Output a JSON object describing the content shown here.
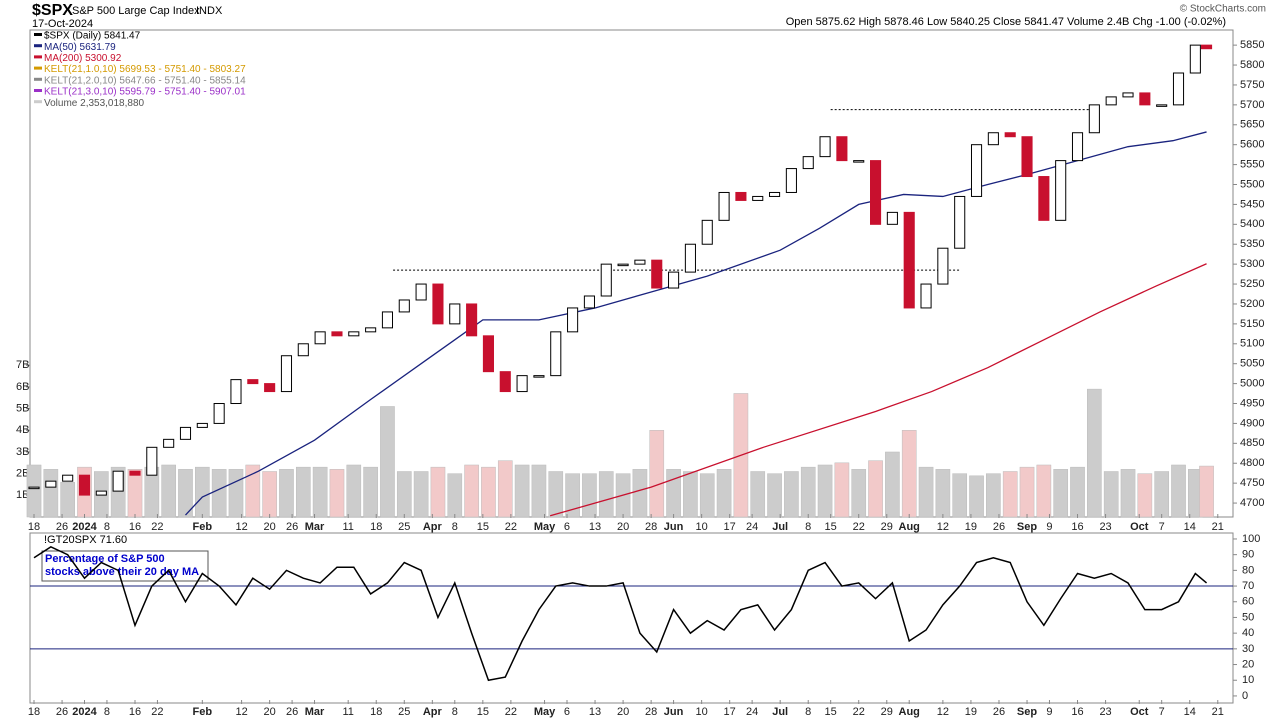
{
  "header": {
    "title": "$SPX",
    "subtitle": "S&P 500 Large Cap Index",
    "exchange": "INDX",
    "date": "17-Oct-2024",
    "quote": "Open 5875.62  High 5878.46  Low 5840.25  Close 5841.47  Volume 2.4B  Chg -1.00 (-0.02%)",
    "credit": "© StockCharts.com"
  },
  "chart_data": [
    {
      "type": "candlestick",
      "x": [
        0,
        3,
        6,
        9,
        12,
        15,
        18,
        21,
        24,
        27,
        30,
        33,
        36,
        39,
        42,
        45,
        48,
        51,
        54,
        57,
        60,
        63,
        66,
        69,
        72,
        75,
        78,
        81,
        84,
        87,
        90,
        93,
        96,
        99,
        102,
        105,
        108,
        111,
        114,
        117,
        120,
        123,
        126,
        129,
        132,
        135,
        138,
        141,
        144,
        147,
        150,
        153,
        156,
        159,
        162,
        165,
        168,
        171,
        174,
        177,
        180,
        183,
        186,
        189,
        192,
        195,
        198,
        201,
        204,
        207,
        209
      ],
      "xlim": [
        -1,
        213
      ],
      "xticks": [
        {
          "value": 0,
          "label": "18"
        },
        {
          "value": 5,
          "label": "26"
        },
        {
          "value": 9,
          "label": "2024"
        },
        {
          "value": 13,
          "label": "8"
        },
        {
          "value": 18,
          "label": "16"
        },
        {
          "value": 22,
          "label": "22"
        },
        {
          "value": 30,
          "label": "Feb"
        },
        {
          "value": 37,
          "label": "12"
        },
        {
          "value": 42,
          "label": "20"
        },
        {
          "value": 46,
          "label": "26"
        },
        {
          "value": 50,
          "label": "Mar"
        },
        {
          "value": 56,
          "label": "11"
        },
        {
          "value": 61,
          "label": "18"
        },
        {
          "value": 66,
          "label": "25"
        },
        {
          "value": 71,
          "label": "Apr"
        },
        {
          "value": 75,
          "label": "8"
        },
        {
          "value": 80,
          "label": "15"
        },
        {
          "value": 85,
          "label": "22"
        },
        {
          "value": 91,
          "label": "May"
        },
        {
          "value": 95,
          "label": "6"
        },
        {
          "value": 100,
          "label": "13"
        },
        {
          "value": 105,
          "label": "20"
        },
        {
          "value": 110,
          "label": "28"
        },
        {
          "value": 114,
          "label": "Jun"
        },
        {
          "value": 119,
          "label": "10"
        },
        {
          "value": 124,
          "label": "17"
        },
        {
          "value": 128,
          "label": "24"
        },
        {
          "value": 133,
          "label": "Jul"
        },
        {
          "value": 138,
          "label": "8"
        },
        {
          "value": 142,
          "label": "15"
        },
        {
          "value": 147,
          "label": "22"
        },
        {
          "value": 152,
          "label": "29"
        },
        {
          "value": 156,
          "label": "Aug"
        },
        {
          "value": 162,
          "label": "12"
        },
        {
          "value": 167,
          "label": "19"
        },
        {
          "value": 172,
          "label": "26"
        },
        {
          "value": 177,
          "label": "Sep"
        },
        {
          "value": 181,
          "label": "9"
        },
        {
          "value": 186,
          "label": "16"
        },
        {
          "value": 191,
          "label": "23"
        },
        {
          "value": 197,
          "label": "Oct"
        },
        {
          "value": 201,
          "label": "7"
        },
        {
          "value": 206,
          "label": "14"
        },
        {
          "value": 211,
          "label": "21"
        }
      ],
      "ylim": [
        4665,
        5888
      ],
      "yticks": [
        4700,
        4750,
        4800,
        4850,
        4900,
        4950,
        5000,
        5050,
        5100,
        5150,
        5200,
        5250,
        5300,
        5350,
        5400,
        5450,
        5500,
        5550,
        5600,
        5650,
        5700,
        5750,
        5800,
        5850
      ],
      "y2lim": [
        0,
        22.47
      ],
      "y2ticks": [
        {
          "value": 1,
          "label": "1B"
        },
        {
          "value": 2,
          "label": "2B"
        },
        {
          "value": 3,
          "label": "3B"
        },
        {
          "value": 4,
          "label": "4B"
        },
        {
          "value": 5,
          "label": "5B"
        },
        {
          "value": 6,
          "label": "6B"
        },
        {
          "value": 7,
          "label": "7B"
        }
      ],
      "hlines": [
        {
          "y": 5688,
          "x": [
            142,
            188
          ]
        },
        {
          "y": 5285,
          "x": [
            64,
            165
          ]
        }
      ],
      "series": [
        {
          "name": "$SPX (Daily) 5841.47",
          "color": "#000000",
          "down_color": "#c8102e",
          "values": [
            4740,
            4755,
            4770,
            4720,
            4730,
            4780,
            4770,
            4840,
            4860,
            4890,
            4900,
            4950,
            5010,
            5000,
            4980,
            5070,
            5100,
            5130,
            5120,
            5130,
            5140,
            5180,
            5210,
            5250,
            5150,
            5200,
            5120,
            5030,
            4980,
            5020,
            5020,
            5130,
            5190,
            5220,
            5300,
            5300,
            5310,
            5240,
            5280,
            5350,
            5410,
            5480,
            5460,
            5470,
            5480,
            5540,
            5570,
            5620,
            5560,
            5560,
            5400,
            5430,
            5190,
            5250,
            5340,
            5470,
            5600,
            5630,
            5620,
            5520,
            5410,
            5560,
            5630,
            5700,
            5720,
            5730,
            5700,
            5700,
            5780,
            5850,
            5841
          ]
        },
        {
          "name": "MA(50) 5631.79",
          "color": "#1a237e",
          "x": [
            27,
            30,
            40,
            50,
            60,
            70,
            75,
            80,
            90,
            100,
            110,
            120,
            133,
            140,
            147,
            155,
            162,
            170,
            177,
            186,
            195,
            203,
            209
          ],
          "values": [
            4670,
            4715,
            4780,
            4858,
            4960,
            5060,
            5110,
            5160,
            5160,
            5190,
            5230,
            5270,
            5335,
            5390,
            5450,
            5475,
            5470,
            5500,
            5525,
            5560,
            5595,
            5610,
            5632
          ]
        },
        {
          "name": "MA(200) 5300.92",
          "color": "#c8102e",
          "x": [
            92,
            110,
            130,
            150,
            160,
            170,
            180,
            190,
            200,
            209
          ],
          "values": [
            4668,
            4740,
            4840,
            4930,
            4980,
            5040,
            5110,
            5180,
            5245,
            5301
          ]
        },
        {
          "name": "KELT(21,1.0,10) 5699.53 - 5751.40 - 5803.27",
          "color": "#d49a00"
        },
        {
          "name": "KELT(21,2.0,10) 5647.66 - 5751.40 - 5855.14",
          "color": "#888888"
        },
        {
          "name": "KELT(21,3.0,10) 5595.79 - 5751.40 - 5907.01",
          "color": "#9b30c8"
        },
        {
          "name": "Volume 2,353,018,880",
          "color": "#cccccc",
          "down_color": "#f2c9c9",
          "axis": "y2",
          "values": [
            2.4,
            2.2,
            1.6,
            2.3,
            2.1,
            2.3,
            2.2,
            2.3,
            2.4,
            2.2,
            2.3,
            2.2,
            2.2,
            2.4,
            2.1,
            2.2,
            2.3,
            2.3,
            2.2,
            2.4,
            2.3,
            5.1,
            2.1,
            2.1,
            2.3,
            2.0,
            2.4,
            2.3,
            2.6,
            2.4,
            2.4,
            2.1,
            2.0,
            2.0,
            2.1,
            2.0,
            2.2,
            4.0,
            2.2,
            2.1,
            2.0,
            2.2,
            5.7,
            2.1,
            2.0,
            2.1,
            2.3,
            2.4,
            2.5,
            2.2,
            2.6,
            3.0,
            4.0,
            2.3,
            2.2,
            2.0,
            1.9,
            2.0,
            2.1,
            2.3,
            2.4,
            2.2,
            2.3,
            5.9,
            2.1,
            2.2,
            2.0,
            2.1,
            2.4,
            2.2,
            2.35
          ]
        }
      ]
    },
    {
      "type": "line",
      "title": "!GT20SPX 71.60",
      "color": "#000000",
      "annotation": [
        "Percentage of S&P 500",
        "stocks above their 20 day MA"
      ],
      "x": [
        0,
        3,
        6,
        9,
        12,
        15,
        18,
        21,
        24,
        27,
        30,
        33,
        36,
        39,
        42,
        45,
        48,
        51,
        54,
        57,
        60,
        63,
        66,
        69,
        72,
        75,
        78,
        81,
        84,
        87,
        90,
        93,
        96,
        99,
        102,
        105,
        108,
        111,
        114,
        117,
        120,
        123,
        126,
        129,
        132,
        135,
        138,
        141,
        144,
        147,
        150,
        153,
        156,
        159,
        162,
        165,
        168,
        171,
        174,
        177,
        180,
        183,
        186,
        189,
        192,
        195,
        198,
        201,
        204,
        207,
        209
      ],
      "values": [
        88,
        95,
        90,
        75,
        85,
        80,
        45,
        70,
        80,
        60,
        78,
        70,
        58,
        75,
        68,
        80,
        75,
        72,
        82,
        82,
        65,
        72,
        85,
        80,
        50,
        72,
        40,
        10,
        12,
        35,
        55,
        70,
        72,
        70,
        70,
        72,
        40,
        28,
        55,
        40,
        48,
        42,
        55,
        58,
        42,
        55,
        80,
        85,
        70,
        72,
        62,
        72,
        35,
        42,
        58,
        70,
        85,
        88,
        85,
        60,
        45,
        62,
        78,
        75,
        78,
        72,
        55,
        55,
        60,
        78,
        72
      ],
      "ylim": [
        -4.5,
        103.8
      ],
      "yticks": [
        0,
        10,
        20,
        30,
        40,
        50,
        60,
        70,
        80,
        90,
        100
      ],
      "hlines": [
        70,
        30
      ],
      "hline_color": "#1a237e"
    }
  ]
}
